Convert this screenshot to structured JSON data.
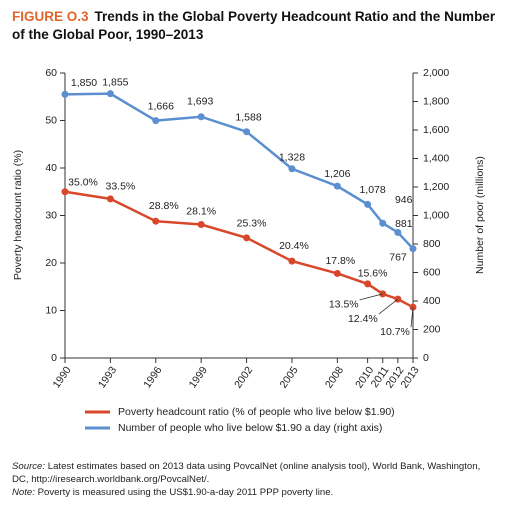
{
  "chart_data": {
    "type": "line",
    "figure_label": "FIGURE O.3",
    "title": "Trends in the Global Poverty Headcount Ratio and the Number of the Global Poor, 1990–2013",
    "y_label": "Poverty headcount ratio (%)",
    "y2_label": "Number of poor (millions)",
    "x": [
      1990,
      1993,
      1996,
      1999,
      2002,
      2005,
      2008,
      2010,
      2011,
      2012,
      2013
    ],
    "xlim": [
      1990,
      2013
    ],
    "xticks": [
      1990,
      1993,
      1996,
      1999,
      2002,
      2005,
      2008,
      2010,
      2011,
      2012,
      2013
    ],
    "ylim": [
      0,
      60
    ],
    "yticks": [
      0,
      10,
      20,
      30,
      40,
      50,
      60
    ],
    "y2lim": [
      0,
      2000
    ],
    "y2ticks": [
      0,
      200,
      400,
      600,
      800,
      {
        "value": 1000,
        "label": "1,000"
      },
      {
        "value": 1200,
        "label": "1,200"
      },
      {
        "value": 1400,
        "label": "1,400"
      },
      {
        "value": 1600,
        "label": "1,600"
      },
      {
        "value": 1800,
        "label": "1,800"
      },
      {
        "value": 2000,
        "label": "2,000"
      }
    ],
    "grid": false,
    "series": [
      {
        "name": "Poverty headcount ratio (% of people who live below $1.90)",
        "color": "#d9472b",
        "values": [
          35.0,
          33.5,
          28.8,
          28.1,
          25.3,
          20.4,
          17.8,
          15.6,
          13.5,
          12.4,
          10.7
        ],
        "value_labels": [
          "35.0%",
          "33.5%",
          "28.8%",
          "28.1%",
          "25.3%",
          "20.4%",
          "17.8%",
          "15.6%",
          "13.5%",
          "12.4%",
          "10.7%"
        ]
      },
      {
        "name": "Number of people who live below $1.90 a day (right axis)",
        "color": "#5b8fd0",
        "axis": "y2",
        "values": [
          1850,
          1855,
          1666,
          1693,
          1588,
          1328,
          1206,
          1078,
          946,
          881,
          767
        ],
        "value_labels": [
          "1,850",
          "1,855",
          "1,666",
          "1,693",
          "1,588",
          "1,328",
          "1,206",
          "1,078",
          "946",
          "881",
          "767"
        ]
      }
    ],
    "source_label": "Source:",
    "source": "Latest estimates based on 2013 data using PovcalNet (online analysis tool), World Bank, Washington, DC, http://iresearch.worldbank.org/PovcalNet/.",
    "note_label": "Note:",
    "note": "Poverty is measured using the US$1.90-a-day 2011 PPP poverty line."
  }
}
